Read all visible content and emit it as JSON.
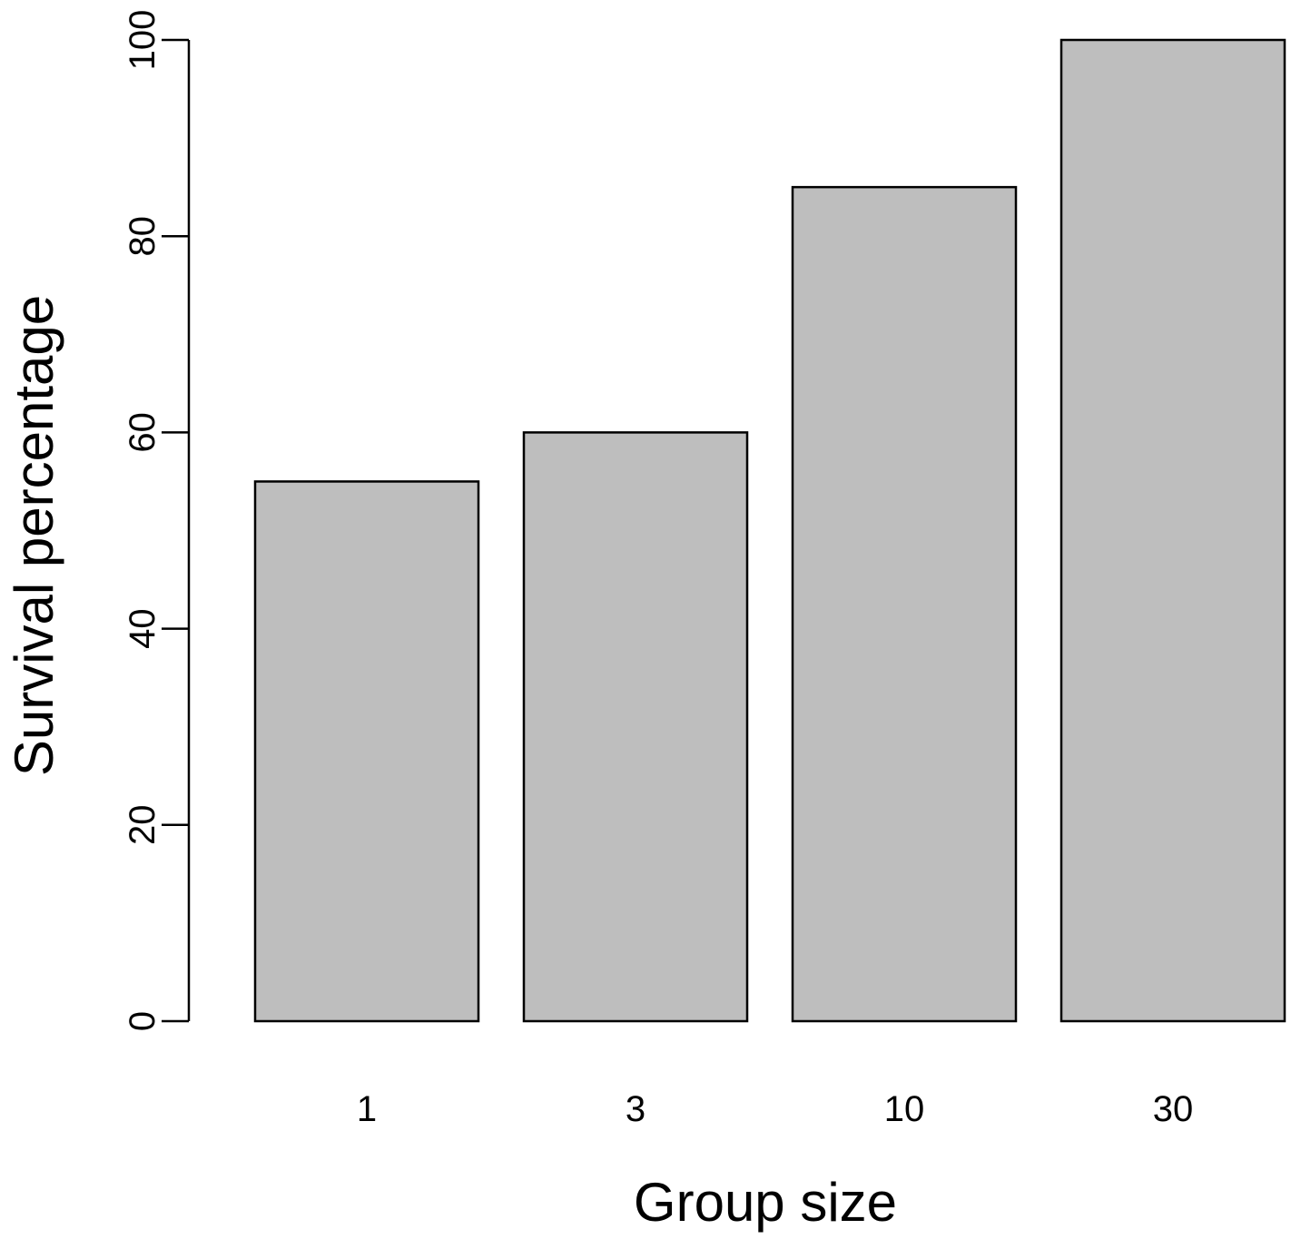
{
  "chart_data": {
    "type": "bar",
    "title": "",
    "xlabel": "Group size",
    "ylabel": "Survival percentage",
    "categories": [
      "1",
      "3",
      "10",
      "30"
    ],
    "values": [
      55,
      60,
      85,
      100
    ],
    "ylim": [
      0,
      100
    ],
    "yticks": [
      "0",
      "20",
      "40",
      "60",
      "80",
      "100"
    ],
    "grid": false,
    "legend": "none",
    "colors": {
      "bar_fill": "#bebebe",
      "bar_stroke": "#000000",
      "axis": "#000000"
    }
  }
}
